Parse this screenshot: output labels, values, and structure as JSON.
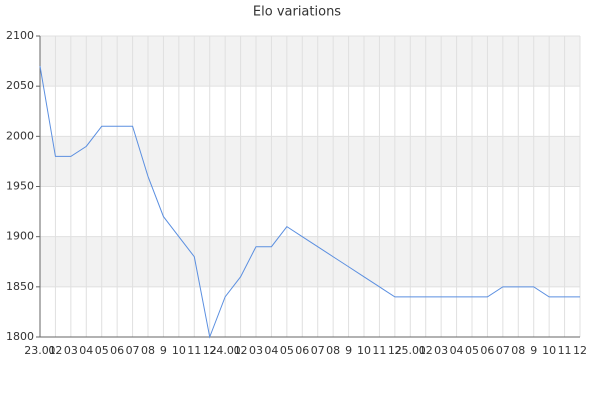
{
  "chart_data": {
    "type": "line",
    "title": "Elo variations",
    "categories": [
      "23.01",
      "02",
      "03",
      "04",
      "05",
      "06",
      "07",
      "08",
      "9",
      "10",
      "11",
      "12",
      "24.01",
      "02",
      "03",
      "04",
      "05",
      "06",
      "07",
      "08",
      "9",
      "10",
      "11",
      "12",
      "25.01",
      "02",
      "03",
      "04",
      "05",
      "06",
      "07",
      "08",
      "9",
      "10",
      "11",
      "12"
    ],
    "series": [
      {
        "name": "Elo",
        "color": "#5b8fe0",
        "values": [
          2070,
          1980,
          1980,
          1990,
          2010,
          2010,
          2010,
          1960,
          1920,
          1900,
          1880,
          1800,
          1840,
          1860,
          1890,
          1890,
          1910,
          1900,
          1890,
          1880,
          1870,
          1860,
          1850,
          1840,
          1840,
          1840,
          1840,
          1840,
          1840,
          1840,
          1850,
          1850,
          1850,
          1840,
          1840,
          1840
        ]
      }
    ],
    "ylim": [
      1800,
      2100
    ],
    "yticks": [
      1800,
      1850,
      1900,
      1950,
      2000,
      2050,
      2100
    ],
    "grid": true
  }
}
